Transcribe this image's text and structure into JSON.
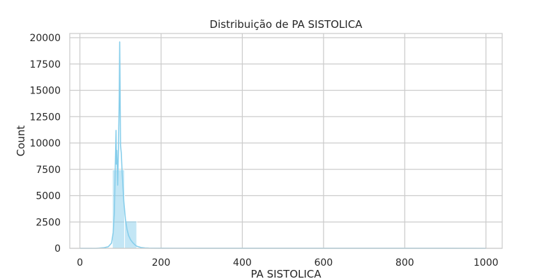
{
  "chart_data": {
    "type": "bar",
    "subtype": "histogram",
    "title": "Distribuição de PA SISTOLICA",
    "xlabel": "PA SISTOLICA",
    "ylabel": "Count",
    "xlim": [
      -25,
      1040
    ],
    "ylim": [
      0,
      20400
    ],
    "x_ticks": [
      0,
      200,
      400,
      600,
      800,
      1000
    ],
    "y_ticks": [
      0,
      2500,
      5000,
      7500,
      10000,
      12500,
      15000,
      17500,
      20000
    ],
    "grid": true,
    "legend": "none",
    "bar_color": "#87ceeb",
    "bar_edge_color": "#ffffff",
    "bar_alpha": 0.5,
    "kde_color": "#87ceeb",
    "bins": [
      {
        "x0": 0,
        "x1": 30,
        "count": 5
      },
      {
        "x0": 30,
        "x1": 60,
        "count": 15
      },
      {
        "x0": 60,
        "x1": 80,
        "count": 60
      },
      {
        "x0": 80,
        "x1": 110,
        "count": 7450
      },
      {
        "x0": 110,
        "x1": 140,
        "count": 2600
      },
      {
        "x0": 140,
        "x1": 170,
        "count": 60
      },
      {
        "x0": 170,
        "x1": 200,
        "count": 15
      },
      {
        "x0": 200,
        "x1": 230,
        "count": 5
      },
      {
        "x0": 230,
        "x1": 260,
        "count": 3
      },
      {
        "x0": 260,
        "x1": 290,
        "count": 2
      }
    ],
    "kde": {
      "x": [
        0,
        40,
        60,
        70,
        78,
        82,
        85,
        87,
        89,
        90,
        91,
        93,
        95,
        97,
        98,
        100,
        102,
        104,
        108,
        112,
        116,
        120,
        125,
        130,
        135,
        140,
        150,
        160,
        170,
        200,
        300,
        500,
        700,
        900,
        1000
      ],
      "y": [
        0,
        0,
        60,
        150,
        500,
        1500,
        3500,
        7500,
        11200,
        8000,
        9300,
        6000,
        9500,
        14500,
        19600,
        9800,
        9000,
        7200,
        4500,
        2800,
        1800,
        1200,
        800,
        550,
        350,
        200,
        80,
        40,
        20,
        10,
        5,
        2,
        1,
        1,
        0
      ]
    }
  }
}
